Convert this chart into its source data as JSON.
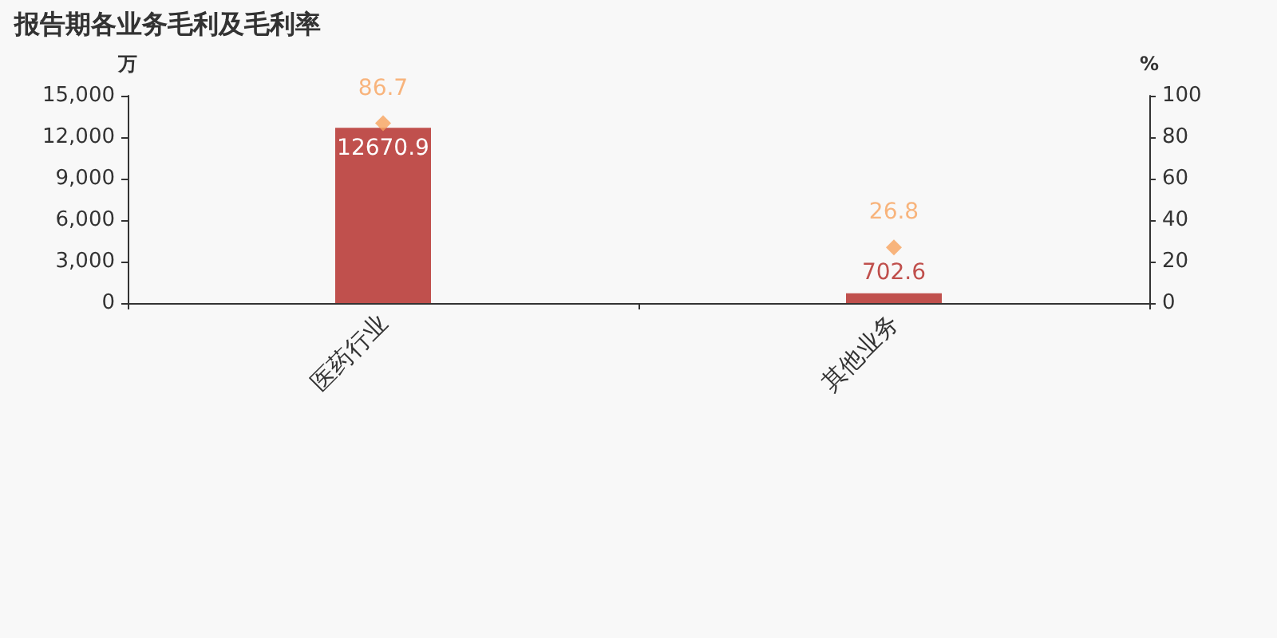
{
  "chart_data": {
    "type": "bar",
    "title": "报告期各业务毛利及毛利率",
    "ylabel": "万",
    "y2label": "%",
    "categories": [
      "医药行业",
      "其他业务"
    ],
    "series": [
      {
        "color": "#c0504d",
        "values": [
          12670.9,
          702.6
        ]
      },
      {
        "type": "scatter",
        "axis": "y2",
        "color": "#f7a35c",
        "x": [
          "医药行业",
          "其他业务"
        ],
        "values": [
          86.7,
          26.8
        ]
      }
    ],
    "ylim": [
      0,
      15000
    ],
    "yticks": [
      0,
      {
        "value": 3000,
        "label": "3,000"
      },
      {
        "value": 6000,
        "label": "6,000"
      },
      {
        "value": 9000,
        "label": "9,000"
      },
      {
        "value": 12000,
        "label": "12,000"
      },
      {
        "value": 15000,
        "label": "15,000"
      }
    ],
    "y2lim": [
      0,
      100
    ],
    "y2ticks": [
      0,
      20,
      40,
      60,
      80,
      100
    ],
    "marker": "diamond",
    "grid": false,
    "data_labels": true
  }
}
